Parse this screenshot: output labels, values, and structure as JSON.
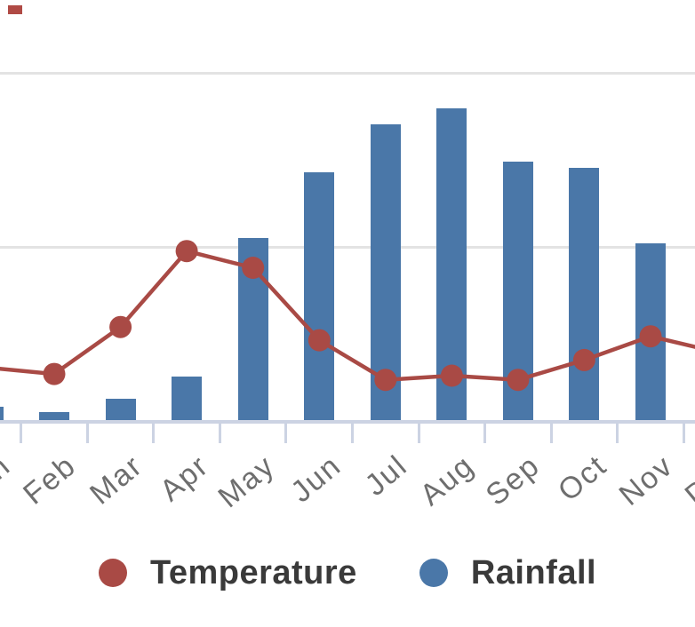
{
  "chart_data": {
    "type": "combo",
    "title": "",
    "categories": [
      "Jan",
      "Feb",
      "Mar",
      "Apr",
      "May",
      "Jun",
      "Jul",
      "Aug",
      "Sep",
      "Oct",
      "Nov",
      "Dec"
    ],
    "series": [
      {
        "name": "Temperature",
        "type": "line",
        "color": "#a94a45",
        "marker": "circle",
        "values": [
          15.3,
          13.5,
          27.0,
          48.8,
          44.0,
          23.2,
          11.8,
          13.0,
          11.8,
          17.5,
          24.3,
          19.8
        ]
      },
      {
        "name": "Rainfall",
        "type": "bar",
        "color": "#4a77a8",
        "values": [
          4.1,
          2.6,
          6.4,
          12.8,
          52.6,
          71.5,
          85.3,
          89.9,
          74.6,
          72.6,
          51.0,
          null
        ]
      }
    ],
    "ylim": [
      0,
      100
    ],
    "y_gridlines": [
      50,
      100
    ],
    "grid": "horizontal",
    "legend_position": "bottom",
    "visible_x_tick_labels": [
      "Feb",
      "Mar",
      "Apr",
      "May",
      "Jun",
      "Jul",
      "Aug",
      "Sep",
      "Oct",
      "Nov",
      "Dec"
    ],
    "note": "Chart is cropped: title, y-axis labels, Jan column and Dec column fall outside the visible area; values estimated from the two visible gridlines (50, 100)."
  },
  "colors": {
    "temperature": "#a94a45",
    "rainfall": "#4a77a8",
    "gridline": "#e3e3e3",
    "axis": "#ccd3e3",
    "x_label_text": "#6e6e6e",
    "legend_text": "#3a3a3a",
    "stray_mark": "#b04a45",
    "background": "#ffffff"
  },
  "legend": {
    "items": [
      {
        "label": "Temperature"
      },
      {
        "label": "Rainfall"
      }
    ]
  }
}
